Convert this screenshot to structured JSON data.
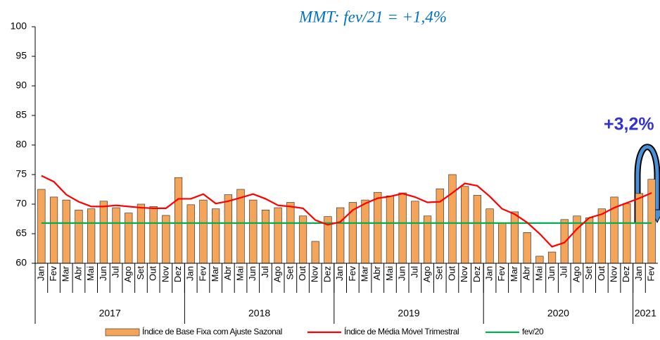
{
  "chart_data": {
    "type": "bar",
    "title": "MMT: fev/21 = +1,4%",
    "annotation": "+3,2%",
    "categories": [
      "Jan",
      "Fev",
      "Mar",
      "Abr",
      "Mai",
      "Jun",
      "Jul",
      "Ago",
      "Set",
      "Out",
      "Nov",
      "Dez",
      "Jan",
      "Fev",
      "Mar",
      "Abr",
      "Mai",
      "Jun",
      "Jul",
      "Ago",
      "Set",
      "Out",
      "Nov",
      "Dez",
      "Jan",
      "Fev",
      "Mar",
      "Abr",
      "Mai",
      "Jun",
      "Jul",
      "Ago",
      "Set",
      "Out",
      "Nov",
      "Dez",
      "Jan",
      "Fev",
      "Mar",
      "Abr",
      "Mai",
      "Jun",
      "Jul",
      "Ago",
      "Set",
      "Out",
      "Nov",
      "Dez",
      "Jan",
      "Fev"
    ],
    "years": [
      "2017",
      "2018",
      "2019",
      "2020",
      "2021"
    ],
    "series": [
      {
        "name": "Índice de Base Fixa com Ajuste Sazonal",
        "type": "bar",
        "color": "#f5a55a",
        "values": [
          72.5,
          71.2,
          70.7,
          69.0,
          69.2,
          70.5,
          69.4,
          68.5,
          70.0,
          69.6,
          68.1,
          74.5,
          69.9,
          70.7,
          69.2,
          71.6,
          72.5,
          70.7,
          69.0,
          69.4,
          70.3,
          68.0,
          63.7,
          67.9,
          69.4,
          70.3,
          70.7,
          72.0,
          71.4,
          71.9,
          70.5,
          68.0,
          72.6,
          75.0,
          73.0,
          71.5,
          69.2,
          66.8,
          68.7,
          65.2,
          61.2,
          61.9,
          67.4,
          68.0,
          67.7,
          69.2,
          71.2,
          70.1,
          71.8,
          74.2
        ]
      },
      {
        "name": "Índice de Média Móvel Trimestral",
        "type": "line",
        "color": "#ff0000",
        "values": [
          74.8,
          73.8,
          71.6,
          70.4,
          69.6,
          69.6,
          69.8,
          69.6,
          69.4,
          69.3,
          69.3,
          70.9,
          70.9,
          71.7,
          70.1,
          70.5,
          71.1,
          71.7,
          70.9,
          69.8,
          69.6,
          69.3,
          67.3,
          66.5,
          67.0,
          69.0,
          70.1,
          71.0,
          71.3,
          71.8,
          71.2,
          70.3,
          70.4,
          71.9,
          73.5,
          73.1,
          71.3,
          69.2,
          68.3,
          66.9,
          65.0,
          62.8,
          63.5,
          65.8,
          67.7,
          68.3,
          69.4,
          70.2,
          71.0,
          71.9
        ]
      }
    ],
    "reference_lines": [
      {
        "name": "fev/20",
        "color": "#00b050",
        "value": 66.8
      }
    ],
    "ylim": [
      60,
      100
    ],
    "yticks": [
      60,
      65,
      70,
      75,
      80,
      85,
      90,
      95,
      100
    ],
    "grid": false
  }
}
